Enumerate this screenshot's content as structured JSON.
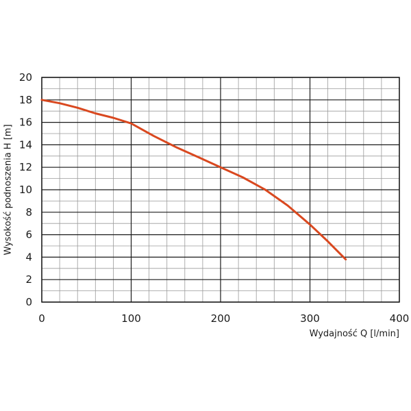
{
  "chart_data": {
    "type": "line",
    "title": "",
    "xlabel": "Wydajność Q [l/min]",
    "ylabel": "Wysokość podnoszenia H [m]",
    "xlim": [
      0,
      400
    ],
    "ylim": [
      0,
      20
    ],
    "x_ticks": [
      "0",
      "100",
      "200",
      "300",
      "400"
    ],
    "y_ticks": [
      "0",
      "2",
      "4",
      "6",
      "8",
      "10",
      "12",
      "14",
      "16",
      "18",
      "20"
    ],
    "x_tick_values": [
      0,
      100,
      200,
      300,
      400
    ],
    "y_tick_values": [
      0,
      2,
      4,
      6,
      8,
      10,
      12,
      14,
      16,
      18,
      20
    ],
    "grid": true,
    "minor_grid_x_step": 20,
    "minor_grid_y_step": 1,
    "series": [
      {
        "color": "#d9481f",
        "x": [
          0,
          20,
          40,
          60,
          80,
          100,
          125,
          150,
          175,
          200,
          225,
          250,
          275,
          300,
          320,
          340
        ],
        "y": [
          18.0,
          17.7,
          17.3,
          16.8,
          16.4,
          15.9,
          14.8,
          13.8,
          12.9,
          12.0,
          11.1,
          10.0,
          8.6,
          6.9,
          5.4,
          3.8
        ]
      }
    ],
    "colors": {
      "grid_major": "#1a1a1a",
      "grid_minor": "#9a9a9a",
      "line": "#d9481f",
      "text": "#1a1a1a"
    }
  }
}
